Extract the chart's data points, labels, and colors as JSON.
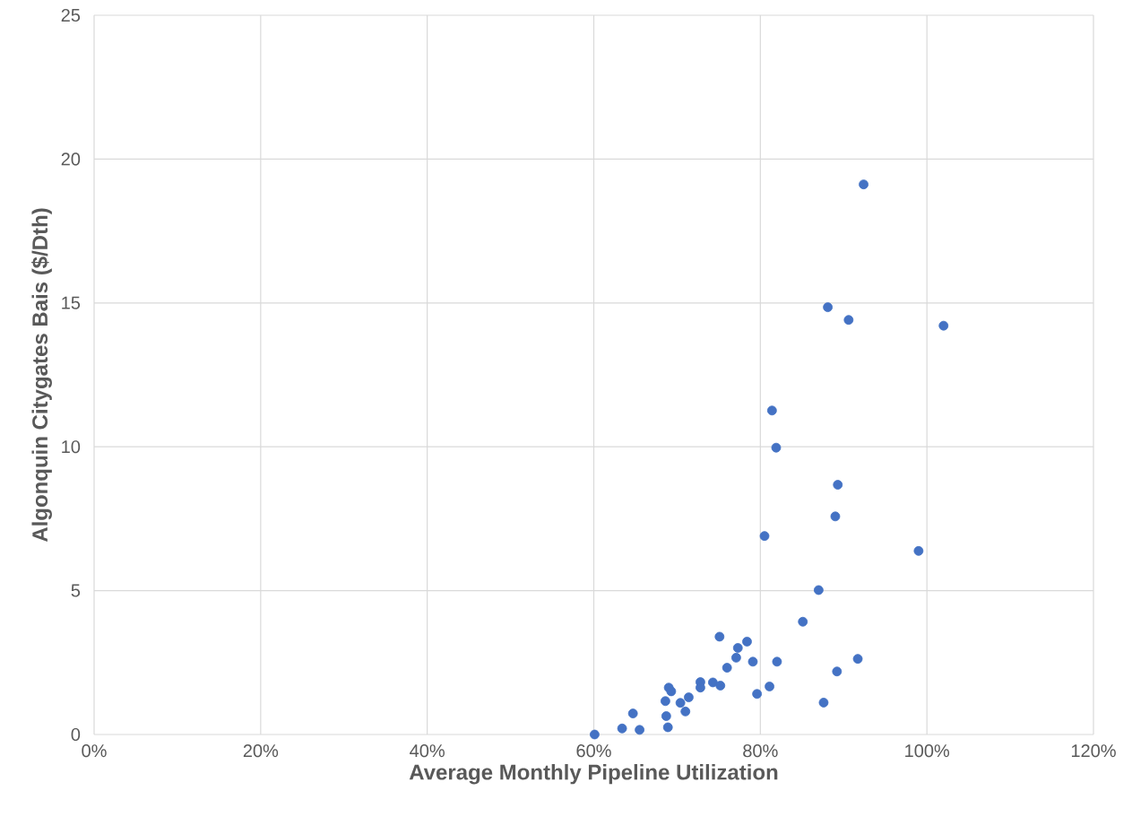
{
  "chart_data": {
    "type": "scatter",
    "xlabel": "Average Monthly Pipeline Utilization",
    "ylabel": "Algonquin Citygates Bais ($/Dth)",
    "xlim": [
      0,
      1.2
    ],
    "ylim": [
      0,
      25
    ],
    "xticks": [
      {
        "value": 0,
        "label": "0%"
      },
      {
        "value": 0.2,
        "label": "20%"
      },
      {
        "value": 0.4,
        "label": "40%"
      },
      {
        "value": 0.6,
        "label": "60%"
      },
      {
        "value": 0.8,
        "label": "80%"
      },
      {
        "value": 1.0,
        "label": "100%"
      },
      {
        "value": 1.2,
        "label": "120%"
      }
    ],
    "yticks": [
      0,
      5,
      10,
      15,
      20,
      25
    ],
    "grid": true,
    "marker": "circle",
    "color": "#4472c4",
    "x": [
      0.601,
      0.634,
      0.647,
      0.655,
      0.686,
      0.687,
      0.689,
      0.69,
      0.693,
      0.704,
      0.71,
      0.714,
      0.728,
      0.728,
      0.743,
      0.752,
      0.751,
      0.76,
      0.771,
      0.773,
      0.784,
      0.791,
      0.796,
      0.811,
      0.82,
      0.851,
      0.876,
      0.892,
      0.917,
      0.924,
      0.881,
      0.906,
      1.02,
      0.814,
      0.819,
      0.893,
      0.89,
      0.805,
      0.99,
      0.87
    ],
    "values": [
      0.0,
      0.21,
      0.73,
      0.16,
      1.16,
      0.64,
      0.25,
      1.63,
      1.5,
      1.1,
      0.8,
      1.29,
      1.82,
      1.63,
      1.81,
      1.7,
      3.4,
      2.32,
      2.67,
      3.01,
      3.23,
      2.53,
      1.41,
      1.67,
      2.53,
      3.92,
      1.11,
      2.19,
      2.63,
      19.12,
      14.85,
      14.41,
      14.21,
      11.26,
      9.97,
      8.68,
      7.58,
      6.9,
      6.38,
      5.02
    ]
  }
}
